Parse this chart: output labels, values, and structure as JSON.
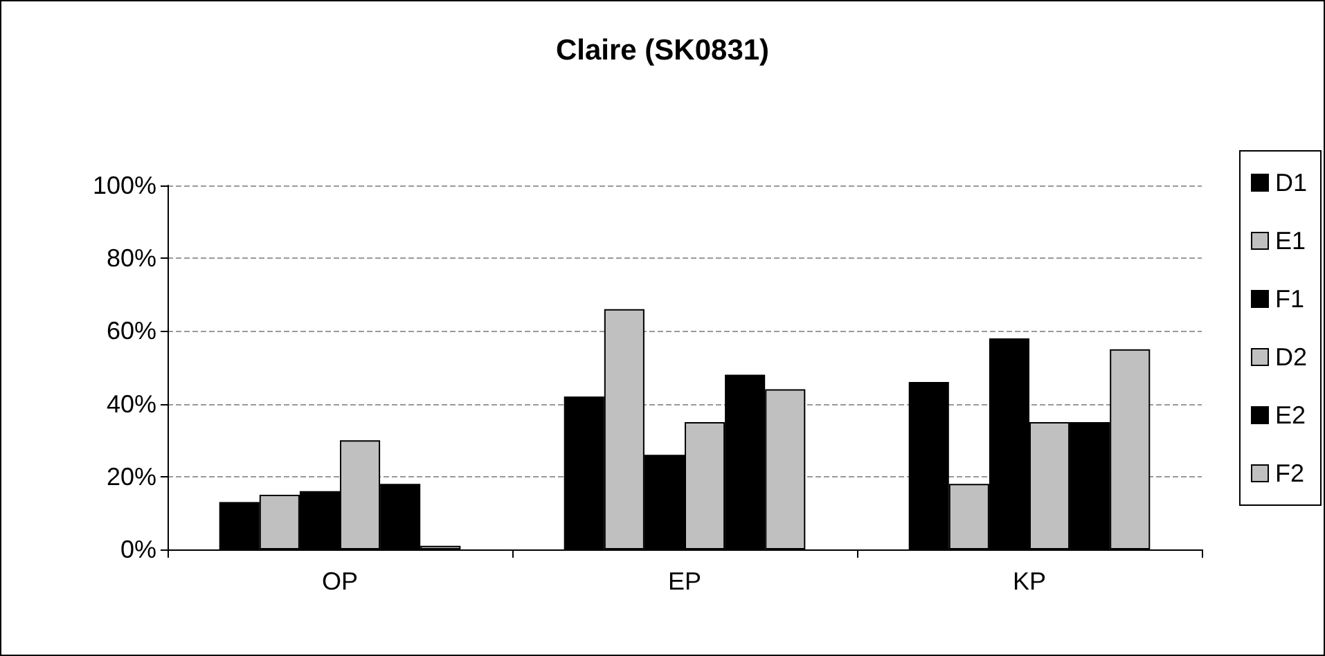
{
  "chart_data": {
    "type": "bar",
    "title": "Claire (SK0831)",
    "categories": [
      "OP",
      "EP",
      "KP"
    ],
    "series": [
      {
        "name": "D1",
        "color": "#000000",
        "values": [
          13,
          42,
          46
        ]
      },
      {
        "name": "E1",
        "color": "#c0c0c0",
        "values": [
          15,
          66,
          18
        ]
      },
      {
        "name": "F1",
        "color": "#000000",
        "values": [
          16,
          26,
          58
        ]
      },
      {
        "name": "D2",
        "color": "#c0c0c0",
        "values": [
          30,
          35,
          35
        ]
      },
      {
        "name": "E2",
        "color": "#000000",
        "values": [
          18,
          48,
          35
        ]
      },
      {
        "name": "F2",
        "color": "#c0c0c0",
        "values": [
          1,
          44,
          55
        ]
      }
    ],
    "ylim": [
      0,
      100
    ],
    "yticks": [
      {
        "value": 0,
        "label": "0%"
      },
      {
        "value": 20,
        "label": "20%"
      },
      {
        "value": 40,
        "label": "40%"
      },
      {
        "value": 60,
        "label": "60%"
      },
      {
        "value": 80,
        "label": "80%"
      },
      {
        "value": 100,
        "label": "100%"
      }
    ],
    "grid": "y",
    "legend": "right"
  }
}
